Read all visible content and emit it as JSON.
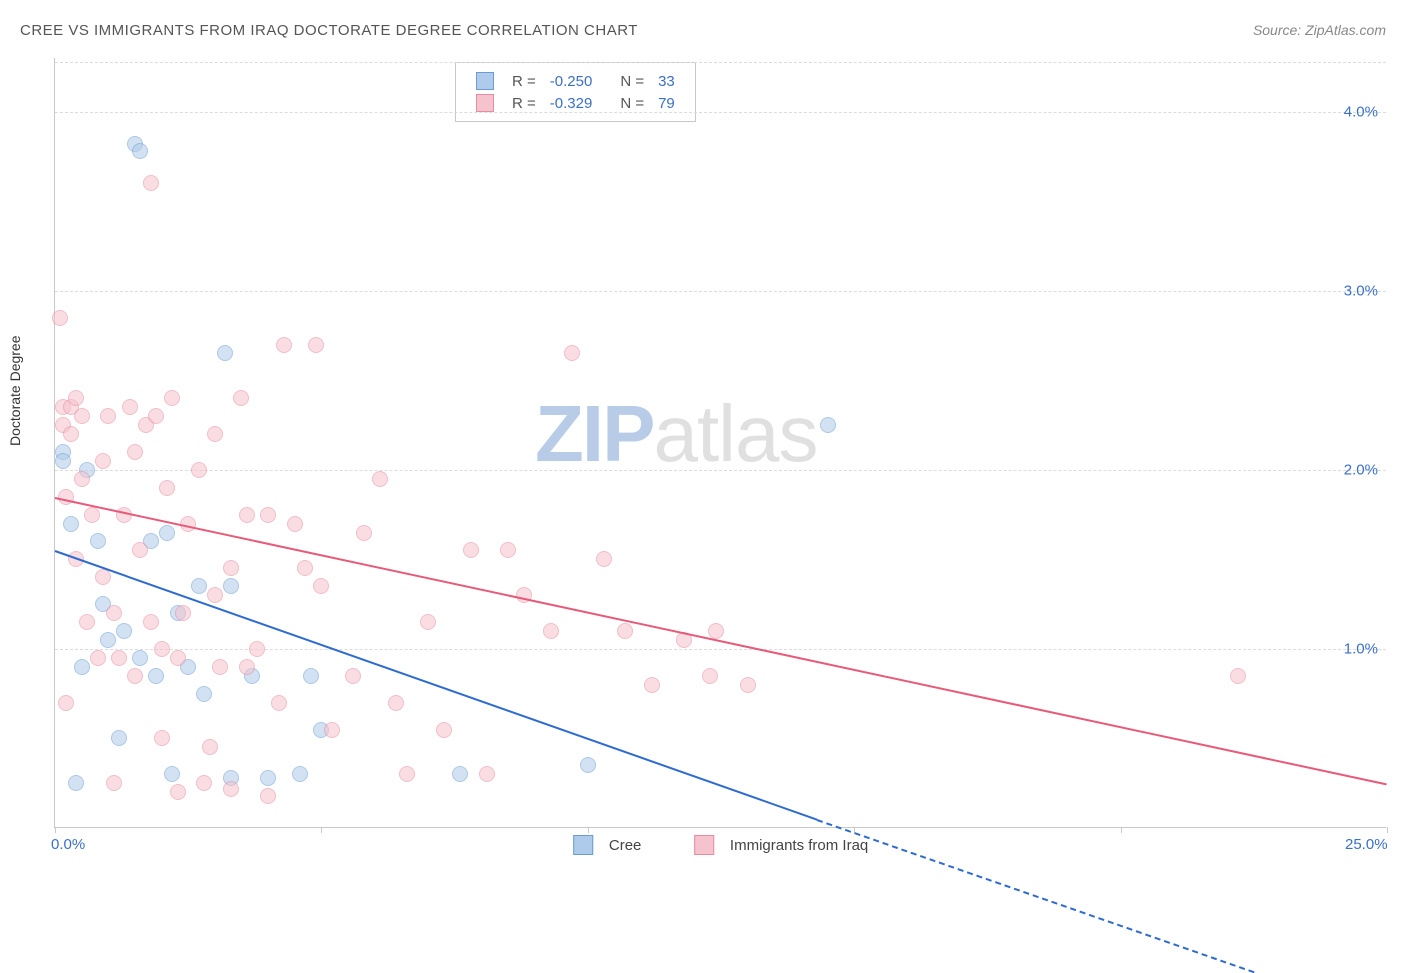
{
  "title": "CREE VS IMMIGRANTS FROM IRAQ DOCTORATE DEGREE CORRELATION CHART",
  "source": "Source: ZipAtlas.com",
  "ylabel": "Doctorate Degree",
  "chart": {
    "type": "scatter",
    "xlim": [
      0,
      25
    ],
    "ylim": [
      0,
      4.3
    ],
    "x_ticks": [
      0,
      5,
      10,
      15,
      20,
      25
    ],
    "x_tick_labels": [
      "0.0%",
      "",
      "",
      "",
      "",
      "25.0%"
    ],
    "y_ticks": [
      1.0,
      2.0,
      3.0,
      4.0
    ],
    "y_tick_labels": [
      "1.0%",
      "2.0%",
      "3.0%",
      "4.0%"
    ],
    "background_color": "#ffffff",
    "grid_color": "#dcdcdc",
    "axis_color": "#c8c8c8",
    "tick_label_color": "#3b6fc9",
    "point_radius": 8,
    "point_opacity": 0.55,
    "point_stroke_width": 1.2
  },
  "series": [
    {
      "name": "Cree",
      "fill": "#aecbeb",
      "stroke": "#6b9bd1",
      "line_color": "#2e6bd1",
      "R": "-0.250",
      "N": "33",
      "trend": {
        "x1": 0,
        "y1": 1.55,
        "x2": 14.3,
        "y2": 0.05,
        "dash_after_x": 14.3,
        "x2d": 22.5,
        "y2d": -0.8
      },
      "points": [
        [
          0.15,
          2.1
        ],
        [
          0.15,
          2.05
        ],
        [
          0.3,
          1.7
        ],
        [
          0.4,
          0.25
        ],
        [
          0.5,
          0.9
        ],
        [
          0.6,
          2.0
        ],
        [
          0.8,
          1.6
        ],
        [
          0.9,
          1.25
        ],
        [
          1.0,
          1.05
        ],
        [
          1.2,
          0.5
        ],
        [
          1.3,
          1.1
        ],
        [
          1.5,
          3.82
        ],
        [
          1.6,
          0.95
        ],
        [
          1.6,
          3.78
        ],
        [
          1.8,
          1.6
        ],
        [
          1.9,
          0.85
        ],
        [
          2.1,
          1.65
        ],
        [
          2.2,
          0.3
        ],
        [
          2.3,
          1.2
        ],
        [
          2.5,
          0.9
        ],
        [
          2.7,
          1.35
        ],
        [
          2.8,
          0.75
        ],
        [
          3.2,
          2.65
        ],
        [
          3.3,
          1.35
        ],
        [
          3.3,
          0.28
        ],
        [
          3.7,
          0.85
        ],
        [
          4.0,
          0.28
        ],
        [
          4.6,
          0.3
        ],
        [
          4.8,
          0.85
        ],
        [
          5.0,
          0.55
        ],
        [
          7.6,
          0.3
        ],
        [
          10.0,
          0.35
        ],
        [
          14.5,
          2.25
        ]
      ]
    },
    {
      "name": "Immigrants from Iraq",
      "fill": "#f5c3cd",
      "stroke": "#e88aa0",
      "line_color": "#e85a7a",
      "R": "-0.329",
      "N": "79",
      "trend": {
        "x1": 0,
        "y1": 1.85,
        "x2": 25,
        "y2": 0.25
      },
      "points": [
        [
          0.1,
          2.85
        ],
        [
          0.15,
          2.35
        ],
        [
          0.15,
          2.25
        ],
        [
          0.2,
          0.7
        ],
        [
          0.2,
          1.85
        ],
        [
          0.3,
          2.35
        ],
        [
          0.3,
          2.2
        ],
        [
          0.4,
          1.5
        ],
        [
          0.4,
          2.4
        ],
        [
          0.5,
          1.95
        ],
        [
          0.5,
          2.3
        ],
        [
          0.6,
          1.15
        ],
        [
          0.7,
          1.75
        ],
        [
          0.8,
          0.95
        ],
        [
          0.9,
          2.05
        ],
        [
          0.9,
          1.4
        ],
        [
          1.0,
          2.3
        ],
        [
          1.1,
          0.25
        ],
        [
          1.1,
          1.2
        ],
        [
          1.2,
          0.95
        ],
        [
          1.3,
          1.75
        ],
        [
          1.4,
          2.35
        ],
        [
          1.5,
          2.1
        ],
        [
          1.5,
          0.85
        ],
        [
          1.6,
          1.55
        ],
        [
          1.7,
          2.25
        ],
        [
          1.8,
          1.15
        ],
        [
          1.8,
          3.6
        ],
        [
          1.9,
          2.3
        ],
        [
          2.0,
          1.0
        ],
        [
          2.0,
          0.5
        ],
        [
          2.1,
          1.9
        ],
        [
          2.2,
          2.4
        ],
        [
          2.3,
          0.95
        ],
        [
          2.3,
          0.2
        ],
        [
          2.4,
          1.2
        ],
        [
          2.5,
          1.7
        ],
        [
          2.7,
          2.0
        ],
        [
          2.8,
          0.25
        ],
        [
          2.9,
          0.45
        ],
        [
          3.0,
          2.2
        ],
        [
          3.0,
          1.3
        ],
        [
          3.1,
          0.9
        ],
        [
          3.3,
          1.45
        ],
        [
          3.3,
          0.22
        ],
        [
          3.5,
          2.4
        ],
        [
          3.6,
          1.75
        ],
        [
          3.6,
          0.9
        ],
        [
          3.8,
          1.0
        ],
        [
          4.0,
          1.75
        ],
        [
          4.0,
          0.18
        ],
        [
          4.2,
          0.7
        ],
        [
          4.3,
          2.7
        ],
        [
          4.5,
          1.7
        ],
        [
          4.7,
          1.45
        ],
        [
          5.0,
          1.35
        ],
        [
          5.2,
          0.55
        ],
        [
          5.6,
          0.85
        ],
        [
          5.8,
          1.65
        ],
        [
          6.1,
          1.95
        ],
        [
          6.4,
          0.7
        ],
        [
          6.6,
          0.3
        ],
        [
          7.0,
          1.15
        ],
        [
          7.3,
          0.55
        ],
        [
          7.8,
          1.55
        ],
        [
          8.1,
          0.3
        ],
        [
          8.5,
          1.55
        ],
        [
          8.8,
          1.3
        ],
        [
          9.3,
          1.1
        ],
        [
          9.7,
          2.65
        ],
        [
          10.3,
          1.5
        ],
        [
          10.7,
          1.1
        ],
        [
          11.2,
          0.8
        ],
        [
          11.8,
          1.05
        ],
        [
          12.3,
          0.85
        ],
        [
          12.4,
          1.1
        ],
        [
          13.0,
          0.8
        ],
        [
          22.2,
          0.85
        ],
        [
          4.9,
          2.7
        ]
      ]
    }
  ],
  "legend_top": {
    "labels": {
      "R": "R =",
      "N": "N ="
    }
  },
  "legend_bottom": {
    "items": [
      "Cree",
      "Immigrants from Iraq"
    ]
  },
  "watermark": {
    "zip": "ZIP",
    "atlas": "atlas"
  }
}
